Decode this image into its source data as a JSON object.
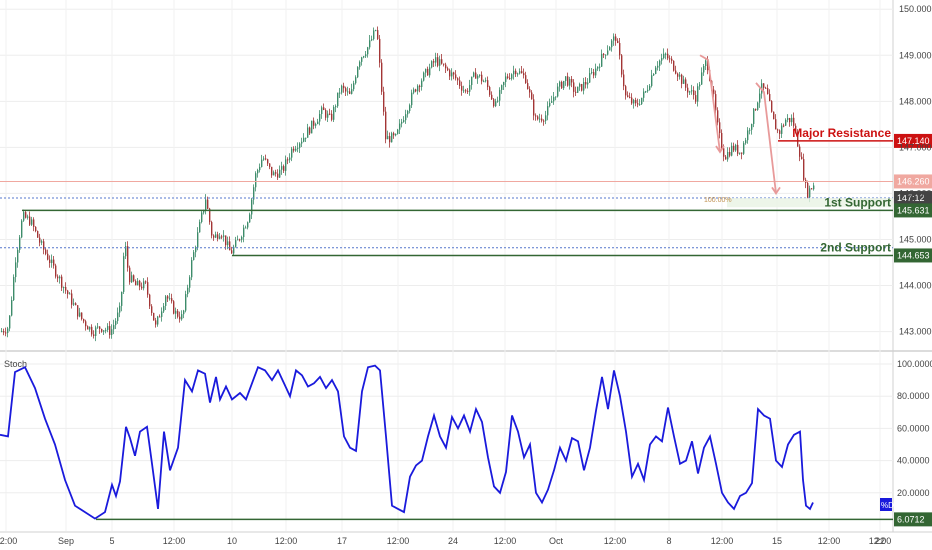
{
  "chart_data": [
    {
      "type": "candlestick",
      "title": "",
      "xlabel": "",
      "ylabel": "",
      "x_tick_labels": [
        "12:00",
        "Sep",
        "5",
        "12:00",
        "10",
        "12:00",
        "17",
        "12:00",
        "24",
        "12:00",
        "Oct",
        "12:00",
        "8",
        "12:00",
        "15",
        "12:00",
        "22",
        "12:00"
      ],
      "y_ticks": [
        "143.000",
        "144.000",
        "145.000",
        "146.000",
        "147.000",
        "148.000",
        "149.000",
        "150.000"
      ],
      "ylim": [
        142.6,
        150.2
      ],
      "grid": true,
      "series": [
        {
          "kind": "price-path",
          "points": [
            [
              0,
              143.0
            ],
            [
              8,
              143.1
            ],
            [
              15,
              144.6
            ],
            [
              22,
              145.5
            ],
            [
              30,
              145.4
            ],
            [
              40,
              144.9
            ],
            [
              50,
              144.5
            ],
            [
              60,
              144.1
            ],
            [
              70,
              143.7
            ],
            [
              80,
              143.3
            ],
            [
              92,
              143.0
            ],
            [
              100,
              143.1
            ],
            [
              110,
              143.0
            ],
            [
              120,
              143.5
            ],
            [
              124,
              145.0
            ],
            [
              128,
              144.2
            ],
            [
              135,
              144.0
            ],
            [
              145,
              144.0
            ],
            [
              155,
              143.1
            ],
            [
              165,
              143.8
            ],
            [
              175,
              143.4
            ],
            [
              182,
              143.3
            ],
            [
              190,
              144.4
            ],
            [
              198,
              145.2
            ],
            [
              205,
              145.9
            ],
            [
              212,
              145.0
            ],
            [
              220,
              145.2
            ],
            [
              230,
              144.7
            ],
            [
              238,
              145.0
            ],
            [
              248,
              145.5
            ],
            [
              255,
              146.4
            ],
            [
              262,
              146.8
            ],
            [
              272,
              146.4
            ],
            [
              282,
              146.5
            ],
            [
              292,
              147.0
            ],
            [
              302,
              147.2
            ],
            [
              312,
              147.5
            ],
            [
              322,
              147.8
            ],
            [
              330,
              147.6
            ],
            [
              340,
              148.3
            ],
            [
              350,
              148.1
            ],
            [
              358,
              148.9
            ],
            [
              368,
              149.2
            ],
            [
              376,
              149.6
            ],
            [
              380,
              148.5
            ],
            [
              385,
              147.2
            ],
            [
              395,
              147.2
            ],
            [
              405,
              147.8
            ],
            [
              415,
              148.3
            ],
            [
              425,
              148.6
            ],
            [
              435,
              148.9
            ],
            [
              445,
              148.7
            ],
            [
              455,
              148.5
            ],
            [
              465,
              148.2
            ],
            [
              475,
              148.6
            ],
            [
              485,
              148.4
            ],
            [
              495,
              147.9
            ],
            [
              505,
              148.5
            ],
            [
              515,
              148.7
            ],
            [
              525,
              148.5
            ],
            [
              535,
              147.6
            ],
            [
              545,
              147.7
            ],
            [
              555,
              148.2
            ],
            [
              565,
              148.5
            ],
            [
              575,
              148.2
            ],
            [
              585,
              148.4
            ],
            [
              595,
              148.7
            ],
            [
              605,
              149.1
            ],
            [
              615,
              149.4
            ],
            [
              620,
              148.8
            ],
            [
              625,
              148.1
            ],
            [
              635,
              147.9
            ],
            [
              645,
              148.2
            ],
            [
              655,
              148.8
            ],
            [
              665,
              149.0
            ],
            [
              675,
              148.7
            ],
            [
              685,
              148.3
            ],
            [
              695,
              148.1
            ],
            [
              700,
              148.5
            ],
            [
              706,
              148.9
            ],
            [
              712,
              148.2
            ],
            [
              718,
              147.3
            ],
            [
              724,
              146.8
            ],
            [
              732,
              147.0
            ],
            [
              740,
              146.9
            ],
            [
              748,
              147.4
            ],
            [
              754,
              147.8
            ],
            [
              760,
              148.3
            ],
            [
              766,
              148.2
            ],
            [
              772,
              147.6
            ],
            [
              778,
              147.3
            ],
            [
              785,
              147.6
            ],
            [
              792,
              147.6
            ],
            [
              800,
              146.8
            ],
            [
              806,
              146.0
            ],
            [
              810,
              146.1
            ],
            [
              813,
              146.2
            ]
          ]
        },
        {
          "name": "Stoch",
          "kind": "oscillator",
          "ylim": [
            0,
            100
          ],
          "points": [
            [
              0,
              56
            ],
            [
              8,
              55
            ],
            [
              15,
              95
            ],
            [
              25,
              98
            ],
            [
              35,
              85
            ],
            [
              45,
              66
            ],
            [
              55,
              50
            ],
            [
              65,
              28
            ],
            [
              75,
              12
            ],
            [
              85,
              8
            ],
            [
              95,
              4
            ],
            [
              105,
              8
            ],
            [
              112,
              25
            ],
            [
              116,
              18
            ],
            [
              120,
              27
            ],
            [
              126,
              61
            ],
            [
              130,
              54
            ],
            [
              135,
              43
            ],
            [
              140,
              58
            ],
            [
              147,
              61
            ],
            [
              152,
              38
            ],
            [
              158,
              10
            ],
            [
              164,
              58
            ],
            [
              170,
              34
            ],
            [
              178,
              48
            ],
            [
              185,
              90
            ],
            [
              192,
              83
            ],
            [
              198,
              96
            ],
            [
              205,
              94
            ],
            [
              210,
              76
            ],
            [
              216,
              92
            ],
            [
              220,
              78
            ],
            [
              226,
              86
            ],
            [
              232,
              78
            ],
            [
              240,
              82
            ],
            [
              246,
              78
            ],
            [
              252,
              88
            ],
            [
              258,
              98
            ],
            [
              265,
              96
            ],
            [
              272,
              90
            ],
            [
              278,
              96
            ],
            [
              284,
              88
            ],
            [
              290,
              80
            ],
            [
              296,
              96
            ],
            [
              302,
              93
            ],
            [
              308,
              86
            ],
            [
              314,
              88
            ],
            [
              320,
              92
            ],
            [
              326,
              85
            ],
            [
              332,
              90
            ],
            [
              338,
              83
            ],
            [
              344,
              55
            ],
            [
              350,
              48
            ],
            [
              356,
              46
            ],
            [
              362,
              83
            ],
            [
              368,
              98
            ],
            [
              375,
              99
            ],
            [
              380,
              96
            ],
            [
              386,
              55
            ],
            [
              392,
              12
            ],
            [
              398,
              10
            ],
            [
              404,
              8
            ],
            [
              410,
              30
            ],
            [
              416,
              37
            ],
            [
              422,
              40
            ],
            [
              428,
              55
            ],
            [
              434,
              68
            ],
            [
              440,
              55
            ],
            [
              446,
              48
            ],
            [
              452,
              67
            ],
            [
              458,
              60
            ],
            [
              464,
              68
            ],
            [
              470,
              58
            ],
            [
              476,
              72
            ],
            [
              482,
              64
            ],
            [
              488,
              42
            ],
            [
              494,
              24
            ],
            [
              500,
              20
            ],
            [
              506,
              33
            ],
            [
              512,
              68
            ],
            [
              518,
              58
            ],
            [
              524,
              42
            ],
            [
              530,
              50
            ],
            [
              536,
              20
            ],
            [
              542,
              14
            ],
            [
              548,
              22
            ],
            [
              554,
              34
            ],
            [
              560,
              48
            ],
            [
              566,
              40
            ],
            [
              572,
              54
            ],
            [
              578,
              52
            ],
            [
              584,
              34
            ],
            [
              590,
              48
            ],
            [
              596,
              71
            ],
            [
              602,
              92
            ],
            [
              608,
              72
            ],
            [
              614,
              96
            ],
            [
              620,
              80
            ],
            [
              626,
              58
            ],
            [
              632,
              30
            ],
            [
              638,
              38
            ],
            [
              644,
              28
            ],
            [
              650,
              50
            ],
            [
              656,
              55
            ],
            [
              662,
              52
            ],
            [
              668,
              73
            ],
            [
              674,
              55
            ],
            [
              680,
              38
            ],
            [
              686,
              40
            ],
            [
              692,
              52
            ],
            [
              698,
              32
            ],
            [
              704,
              48
            ],
            [
              710,
              55
            ],
            [
              716,
              38
            ],
            [
              722,
              20
            ],
            [
              728,
              14
            ],
            [
              734,
              10
            ],
            [
              740,
              18
            ],
            [
              746,
              20
            ],
            [
              752,
              26
            ],
            [
              758,
              72
            ],
            [
              764,
              68
            ],
            [
              770,
              66
            ],
            [
              776,
              40
            ],
            [
              782,
              36
            ],
            [
              788,
              50
            ],
            [
              794,
              56
            ],
            [
              800,
              58
            ],
            [
              803,
              28
            ],
            [
              806,
              12
            ],
            [
              810,
              10
            ],
            [
              813,
              14
            ]
          ]
        }
      ],
      "annotations": [
        {
          "label": "Major Resistance",
          "price": 147.14,
          "badge": "147.140",
          "color": "#cc1111",
          "x_start": 778
        },
        {
          "label": "1st Support",
          "price": 145.631,
          "badge": "145.631",
          "color": "#336633",
          "x_start": 22
        },
        {
          "label": "2nd Support",
          "price": 144.653,
          "badge": "144.653",
          "color": "#336633",
          "x_start": 232
        }
      ],
      "reference_lines": [
        {
          "price": 146.26,
          "badge": "146.260",
          "color": "#f0a8a0",
          "style": "solid"
        },
        {
          "price": 145.9,
          "badge": "147:12",
          "color": "#5577cc",
          "style": "dotted",
          "badge_color": "#444444"
        },
        {
          "price": 144.82,
          "color": "#5577cc",
          "style": "dotted"
        }
      ],
      "fib_label": "100.00%",
      "stoch_badge": "6.0712",
      "stoch_y_ticks": [
        "20.0000",
        "40.0000",
        "60.0000",
        "80.0000",
        "100.0000"
      ],
      "stoch_support": 3.5,
      "stoch_tag": "%D",
      "colors": {
        "up": "#3d8c6a",
        "down": "#a33535",
        "stoch_line": "#1a1adc",
        "support": "#336633",
        "resistance": "#cc1111",
        "arrow": "#e89a9a"
      }
    }
  ],
  "panel_label": "Stoch"
}
